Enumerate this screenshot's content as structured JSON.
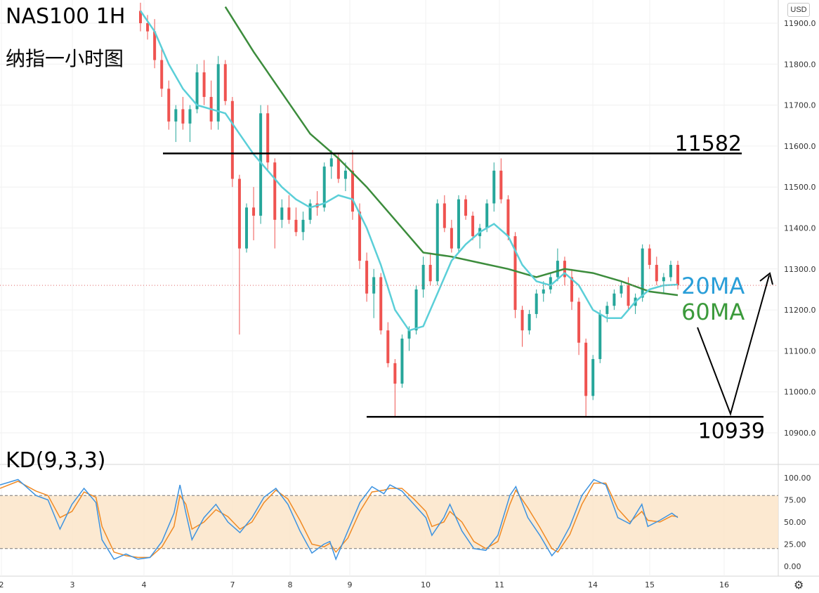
{
  "header": {
    "title": "NAS100 1H",
    "subtitle": "纳指一小时图",
    "currency": "USD"
  },
  "colors": {
    "bull": "#26a69a",
    "bear": "#ef5350",
    "ma20": "#5bcfd8",
    "ma60": "#3c8c3c",
    "k_line": "#3d93e0",
    "d_line": "#f08a24",
    "kd_band": "#fbe3c6"
  },
  "icons": {
    "settings": "gear-icon"
  },
  "chart_data": [
    {
      "type": "candlestick",
      "symbol": "NAS100",
      "timeframe": "1H",
      "x_tick_labels": [
        "2",
        "3",
        "4",
        "7",
        "8",
        "9",
        "10",
        "11",
        "14",
        "15",
        "16"
      ],
      "y_axis_labels": [
        "11900.0",
        "11800.0",
        "11700.0",
        "11600.0",
        "11500.0",
        "11400.0",
        "11300.0",
        "11200.0",
        "11100.0",
        "11000.0",
        "10900.0"
      ],
      "ylim": [
        10880,
        11930
      ],
      "current_price": 11260,
      "levels": [
        {
          "label": "11582",
          "value": 11582
        },
        {
          "label": "10939",
          "value": 10939
        }
      ],
      "ma_labels": {
        "ma20": "20MA",
        "ma60": "60MA"
      },
      "candles": [
        [
          11930,
          11950,
          11880,
          11900
        ],
        [
          11900,
          11920,
          11860,
          11880
        ],
        [
          11880,
          11910,
          11790,
          11810
        ],
        [
          11810,
          11840,
          11720,
          11740
        ],
        [
          11740,
          11760,
          11640,
          11660
        ],
        [
          11660,
          11700,
          11610,
          11690
        ],
        [
          11690,
          11720,
          11640,
          11655
        ],
        [
          11655,
          11700,
          11610,
          11690
        ],
        [
          11690,
          11800,
          11680,
          11780
        ],
        [
          11780,
          11810,
          11700,
          11720
        ],
        [
          11720,
          11760,
          11640,
          11660
        ],
        [
          11660,
          11820,
          11640,
          11800
        ],
        [
          11800,
          11810,
          11700,
          11710
        ],
        [
          11710,
          11720,
          11500,
          11520
        ],
        [
          11520,
          11530,
          11140,
          11350
        ],
        [
          11350,
          11460,
          11340,
          11450
        ],
        [
          11450,
          11500,
          11370,
          11430
        ],
        [
          11430,
          11700,
          11410,
          11680
        ],
        [
          11680,
          11700,
          11540,
          11560
        ],
        [
          11560,
          11570,
          11350,
          11420
        ],
        [
          11420,
          11470,
          11400,
          11450
        ],
        [
          11450,
          11480,
          11410,
          11420
        ],
        [
          11420,
          11450,
          11380,
          11390
        ],
        [
          11390,
          11440,
          11370,
          11420
        ],
        [
          11420,
          11470,
          11410,
          11460
        ],
        [
          11460,
          11490,
          11430,
          11450
        ],
        [
          11450,
          11560,
          11440,
          11550
        ],
        [
          11550,
          11590,
          11520,
          11570
        ],
        [
          11570,
          11580,
          11510,
          11520
        ],
        [
          11520,
          11560,
          11490,
          11540
        ],
        [
          11540,
          11590,
          11420,
          11440
        ],
        [
          11440,
          11460,
          11300,
          11320
        ],
        [
          11320,
          11340,
          11220,
          11240
        ],
        [
          11240,
          11300,
          11180,
          11280
        ],
        [
          11280,
          11290,
          11140,
          11150
        ],
        [
          11150,
          11170,
          11060,
          11070
        ],
        [
          11070,
          11080,
          10940,
          11020
        ],
        [
          11020,
          11140,
          11010,
          11130
        ],
        [
          11130,
          11160,
          11100,
          11150
        ],
        [
          11150,
          11260,
          11140,
          11250
        ],
        [
          11250,
          11330,
          11230,
          11310
        ],
        [
          11310,
          11340,
          11260,
          11270
        ],
        [
          11270,
          11470,
          11260,
          11460
        ],
        [
          11460,
          11480,
          11390,
          11400
        ],
        [
          11400,
          11420,
          11340,
          11350
        ],
        [
          11350,
          11480,
          11340,
          11470
        ],
        [
          11470,
          11480,
          11420,
          11430
        ],
        [
          11430,
          11440,
          11370,
          11380
        ],
        [
          11380,
          11410,
          11350,
          11400
        ],
        [
          11400,
          11470,
          11390,
          11460
        ],
        [
          11460,
          11560,
          11440,
          11540
        ],
        [
          11540,
          11570,
          11460,
          11470
        ],
        [
          11470,
          11480,
          11370,
          11380
        ],
        [
          11380,
          11390,
          11180,
          11200
        ],
        [
          11200,
          11210,
          11110,
          11150
        ],
        [
          11150,
          11200,
          11140,
          11190
        ],
        [
          11190,
          11250,
          11180,
          11240
        ],
        [
          11240,
          11270,
          11220,
          11250
        ],
        [
          11250,
          11290,
          11240,
          11280
        ],
        [
          11280,
          11350,
          11270,
          11320
        ],
        [
          11320,
          11330,
          11260,
          11280
        ],
        [
          11280,
          11300,
          11200,
          11220
        ],
        [
          11220,
          11230,
          11090,
          11120
        ],
        [
          11120,
          11130,
          10940,
          10990
        ],
        [
          10990,
          11090,
          10980,
          11080
        ],
        [
          11080,
          11200,
          11070,
          11190
        ],
        [
          11190,
          11220,
          11170,
          11210
        ],
        [
          11210,
          11250,
          11200,
          11240
        ],
        [
          11240,
          11270,
          11230,
          11260
        ],
        [
          11260,
          11280,
          11200,
          11210
        ],
        [
          11210,
          11240,
          11190,
          11230
        ],
        [
          11230,
          11360,
          11220,
          11350
        ],
        [
          11350,
          11360,
          11300,
          11310
        ],
        [
          11310,
          11330,
          11260,
          11270
        ],
        [
          11270,
          11290,
          11240,
          11280
        ],
        [
          11280,
          11320,
          11270,
          11310
        ],
        [
          11310,
          11320,
          11250,
          11260
        ]
      ],
      "ma20": [
        [
          0,
          11930
        ],
        [
          2,
          11880
        ],
        [
          4,
          11800
        ],
        [
          6,
          11740
        ],
        [
          8,
          11700
        ],
        [
          10,
          11690
        ],
        [
          12,
          11680
        ],
        [
          14,
          11630
        ],
        [
          16,
          11580
        ],
        [
          18,
          11540
        ],
        [
          20,
          11500
        ],
        [
          22,
          11470
        ],
        [
          24,
          11450
        ],
        [
          26,
          11460
        ],
        [
          28,
          11480
        ],
        [
          30,
          11470
        ],
        [
          32,
          11400
        ],
        [
          34,
          11310
        ],
        [
          36,
          11200
        ],
        [
          38,
          11150
        ],
        [
          40,
          11160
        ],
        [
          42,
          11240
        ],
        [
          44,
          11320
        ],
        [
          46,
          11360
        ],
        [
          48,
          11390
        ],
        [
          50,
          11410
        ],
        [
          52,
          11380
        ],
        [
          54,
          11310
        ],
        [
          56,
          11270
        ],
        [
          58,
          11260
        ],
        [
          60,
          11290
        ],
        [
          62,
          11260
        ],
        [
          64,
          11200
        ],
        [
          66,
          11180
        ],
        [
          68,
          11180
        ],
        [
          70,
          11220
        ],
        [
          72,
          11250
        ],
        [
          74,
          11260
        ],
        [
          76,
          11262
        ]
      ],
      "ma60": [
        [
          12,
          11940
        ],
        [
          16,
          11830
        ],
        [
          20,
          11730
        ],
        [
          24,
          11630
        ],
        [
          28,
          11570
        ],
        [
          32,
          11500
        ],
        [
          36,
          11420
        ],
        [
          40,
          11340
        ],
        [
          44,
          11330
        ],
        [
          48,
          11315
        ],
        [
          52,
          11300
        ],
        [
          56,
          11280
        ],
        [
          60,
          11300
        ],
        [
          64,
          11290
        ],
        [
          68,
          11270
        ],
        [
          72,
          11245
        ],
        [
          76,
          11236
        ]
      ]
    },
    {
      "type": "line",
      "title": "KD(9,3,3)",
      "y_axis_labels": [
        "100.00",
        "75.00",
        "50.00",
        "25.00",
        "0.00"
      ],
      "ylim": [
        0,
        100
      ],
      "bands": [
        20,
        80
      ],
      "series": [
        {
          "name": "K",
          "values": [
            [
              0,
              92
            ],
            [
              3,
              98
            ],
            [
              6,
              80
            ],
            [
              8,
              75
            ],
            [
              10,
              42
            ],
            [
              12,
              70
            ],
            [
              14,
              88
            ],
            [
              16,
              72
            ],
            [
              17,
              30
            ],
            [
              19,
              8
            ],
            [
              21,
              14
            ],
            [
              23,
              8
            ],
            [
              25,
              10
            ],
            [
              27,
              28
            ],
            [
              29,
              60
            ],
            [
              30,
              92
            ],
            [
              31,
              60
            ],
            [
              32,
              30
            ],
            [
              34,
              55
            ],
            [
              36,
              70
            ],
            [
              38,
              50
            ],
            [
              40,
              38
            ],
            [
              42,
              55
            ],
            [
              44,
              78
            ],
            [
              46,
              88
            ],
            [
              48,
              70
            ],
            [
              50,
              40
            ],
            [
              52,
              15
            ],
            [
              54,
              25
            ],
            [
              55,
              28
            ],
            [
              56,
              8
            ],
            [
              58,
              40
            ],
            [
              60,
              72
            ],
            [
              62,
              90
            ],
            [
              64,
              82
            ],
            [
              65,
              92
            ],
            [
              67,
              85
            ],
            [
              69,
              70
            ],
            [
              71,
              55
            ],
            [
              72,
              35
            ],
            [
              74,
              55
            ],
            [
              75,
              70
            ],
            [
              77,
              40
            ],
            [
              79,
              20
            ],
            [
              81,
              18
            ],
            [
              83,
              35
            ],
            [
              85,
              80
            ],
            [
              86,
              90
            ],
            [
              88,
              55
            ],
            [
              90,
              35
            ],
            [
              92,
              12
            ],
            [
              93,
              20
            ],
            [
              95,
              45
            ],
            [
              97,
              80
            ],
            [
              99,
              98
            ],
            [
              101,
              92
            ],
            [
              103,
              55
            ],
            [
              105,
              48
            ],
            [
              107,
              70
            ],
            [
              108,
              45
            ],
            [
              110,
              52
            ],
            [
              112,
              60
            ],
            [
              113,
              55
            ]
          ]
        },
        {
          "name": "D",
          "values": [
            [
              0,
              88
            ],
            [
              3,
              96
            ],
            [
              6,
              85
            ],
            [
              8,
              80
            ],
            [
              10,
              55
            ],
            [
              12,
              62
            ],
            [
              14,
              84
            ],
            [
              16,
              78
            ],
            [
              17,
              45
            ],
            [
              19,
              16
            ],
            [
              21,
              12
            ],
            [
              23,
              10
            ],
            [
              25,
              10
            ],
            [
              27,
              22
            ],
            [
              29,
              45
            ],
            [
              30,
              80
            ],
            [
              31,
              70
            ],
            [
              32,
              42
            ],
            [
              34,
              50
            ],
            [
              36,
              64
            ],
            [
              38,
              56
            ],
            [
              40,
              42
            ],
            [
              42,
              50
            ],
            [
              44,
              72
            ],
            [
              46,
              86
            ],
            [
              48,
              76
            ],
            [
              50,
              52
            ],
            [
              52,
              25
            ],
            [
              54,
              22
            ],
            [
              55,
              26
            ],
            [
              56,
              16
            ],
            [
              58,
              32
            ],
            [
              60,
              62
            ],
            [
              62,
              84
            ],
            [
              64,
              86
            ],
            [
              65,
              88
            ],
            [
              67,
              88
            ],
            [
              69,
              76
            ],
            [
              71,
              62
            ],
            [
              72,
              45
            ],
            [
              74,
              50
            ],
            [
              75,
              62
            ],
            [
              77,
              50
            ],
            [
              79,
              28
            ],
            [
              81,
              20
            ],
            [
              83,
              28
            ],
            [
              85,
              70
            ],
            [
              86,
              86
            ],
            [
              88,
              66
            ],
            [
              90,
              44
            ],
            [
              92,
              20
            ],
            [
              93,
              16
            ],
            [
              95,
              36
            ],
            [
              97,
              70
            ],
            [
              99,
              94
            ],
            [
              101,
              94
            ],
            [
              103,
              65
            ],
            [
              105,
              50
            ],
            [
              107,
              62
            ],
            [
              108,
              52
            ],
            [
              110,
              50
            ],
            [
              112,
              57
            ],
            [
              113,
              56
            ]
          ]
        }
      ]
    }
  ]
}
